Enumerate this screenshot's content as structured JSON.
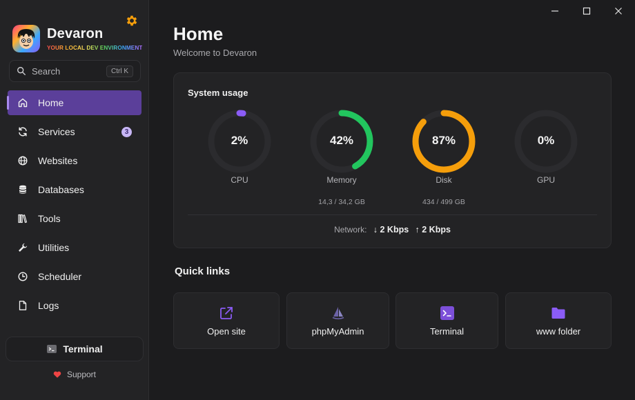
{
  "app": {
    "name": "Devaron",
    "tagline": "YOUR LOCAL DEV ENVIRONMENT"
  },
  "search": {
    "placeholder": "Search",
    "shortcut": "Ctrl K"
  },
  "nav": {
    "items": [
      {
        "label": "Home",
        "icon": "home-icon",
        "active": true
      },
      {
        "label": "Services",
        "icon": "refresh-icon",
        "badge": "3"
      },
      {
        "label": "Websites",
        "icon": "globe-icon"
      },
      {
        "label": "Databases",
        "icon": "database-icon"
      },
      {
        "label": "Tools",
        "icon": "books-icon"
      },
      {
        "label": "Utilities",
        "icon": "wrench-icon"
      },
      {
        "label": "Scheduler",
        "icon": "clock-icon"
      },
      {
        "label": "Logs",
        "icon": "document-icon"
      }
    ]
  },
  "footer": {
    "terminal_label": "Terminal",
    "support_label": "Support"
  },
  "page": {
    "title": "Home",
    "subtitle": "Welcome to Devaron"
  },
  "usage": {
    "title": "System usage",
    "gauges": [
      {
        "label": "CPU",
        "value_text": "2%",
        "percent": 2,
        "color": "#8b5cf6",
        "detail": ""
      },
      {
        "label": "Memory",
        "value_text": "42%",
        "percent": 42,
        "color": "#22c55e",
        "detail": "14,3 / 34,2 GB"
      },
      {
        "label": "Disk",
        "value_text": "87%",
        "percent": 87,
        "color": "#f59e0b",
        "detail": "434 / 499 GB"
      },
      {
        "label": "GPU",
        "value_text": "0%",
        "percent": 0,
        "color": "#8b5cf6",
        "detail": ""
      }
    ],
    "network_label": "Network:",
    "network_down": "↓ 2 Kbps",
    "network_up": "↑ 2 Kbps"
  },
  "quick_links": {
    "title": "Quick links",
    "items": [
      {
        "label": "Open site",
        "icon": "external-link-icon"
      },
      {
        "label": "phpMyAdmin",
        "icon": "phpmyadmin-icon"
      },
      {
        "label": "Terminal",
        "icon": "terminal-icon"
      },
      {
        "label": "www folder",
        "icon": "folder-icon"
      }
    ]
  },
  "colors": {
    "accent": "#5b3f9a",
    "accent_light": "#8b5cf6",
    "gear": "#f59e0b"
  }
}
